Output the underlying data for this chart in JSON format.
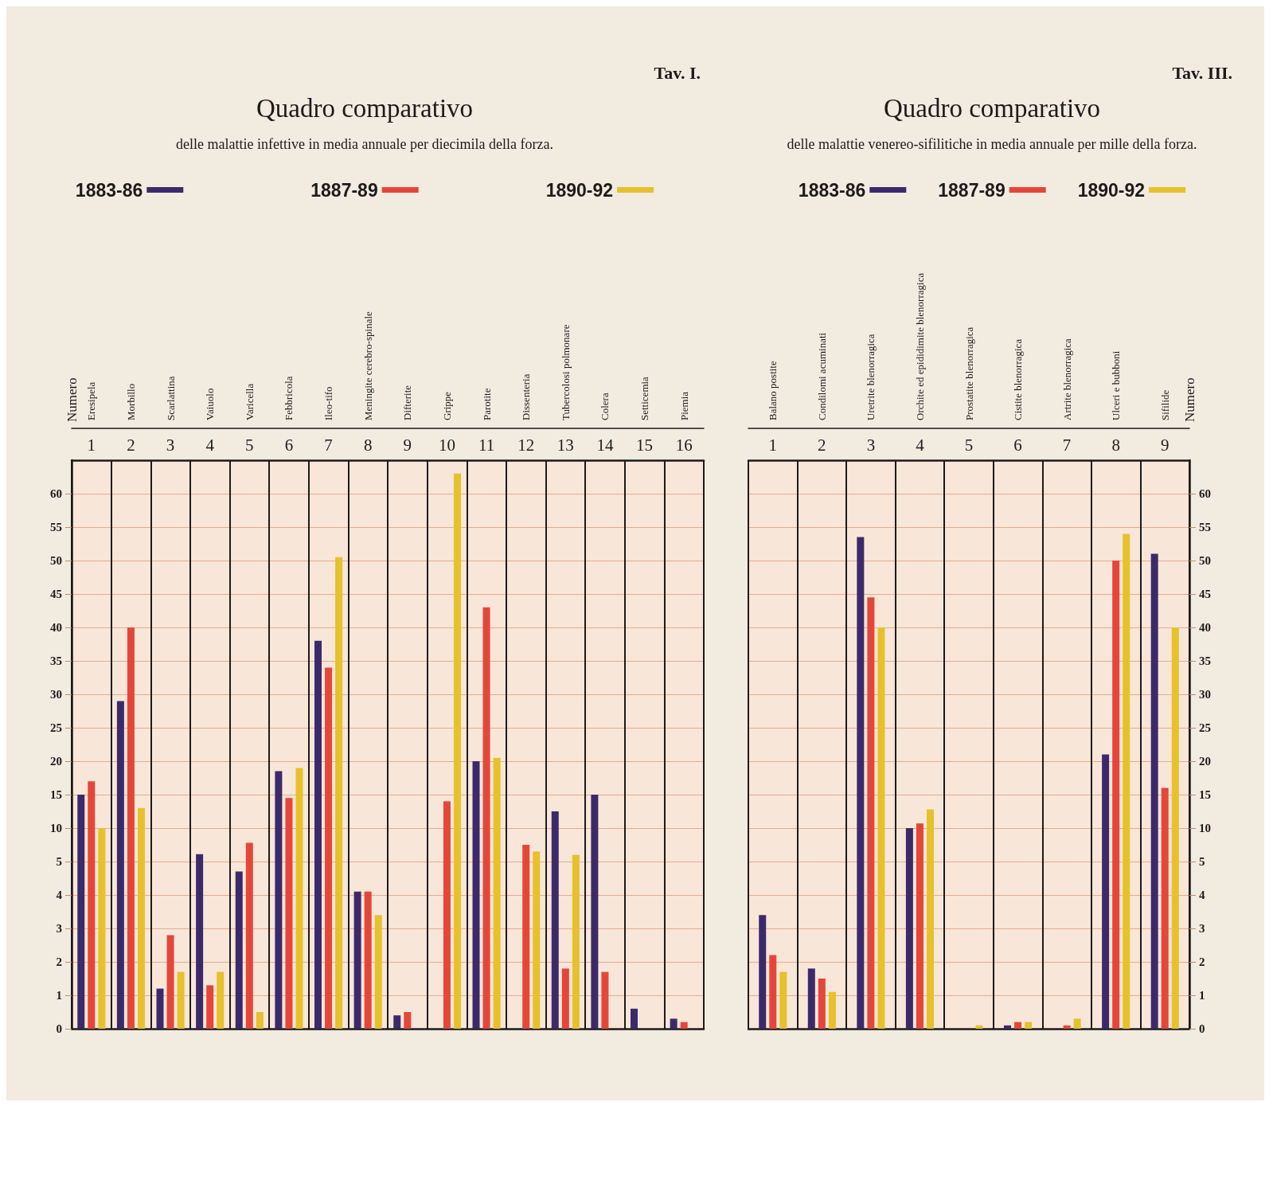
{
  "chart_data": [
    {
      "type": "bar",
      "title": "Quadro comparativo",
      "subtitle": "delle malattie infettive in media annuale per diecimila della forza.",
      "ylabel": "Numero",
      "annotations": [
        "Tav. I."
      ],
      "categories": [
        "Eresipela",
        "Morbillo",
        "Scarlattina",
        "Vaiuolo",
        "Varicella",
        "Febbricola",
        "Ileo-tifo",
        "Meningite cerebro-spinale",
        "Difterite",
        "Grippe",
        "Parotite",
        "Dissenteria",
        "Tubercolosi polmonare",
        "Colera",
        "Setticemia",
        "Piemia"
      ],
      "series": [
        {
          "name": "1883-86",
          "color": "#3b2a6b",
          "values": [
            15,
            29,
            null,
            6.1,
            null,
            18.5,
            38,
            null,
            null,
            null,
            20,
            null,
            12.5,
            15,
            null,
            null
          ]
        },
        {
          "name": "1887-89",
          "color": "#e4473a",
          "values": [
            17,
            40,
            null,
            null,
            7.8,
            14.5,
            34,
            null,
            null,
            14,
            43,
            7.5,
            null,
            null,
            null,
            null
          ]
        },
        {
          "name": "1890-92",
          "color": "#e6c12c",
          "values": [
            10,
            13,
            null,
            null,
            null,
            19,
            50.5,
            null,
            null,
            63,
            20.5,
            6.5,
            6,
            null,
            null,
            null
          ]
        }
      ],
      "ylim": [
        5,
        65
      ],
      "yticks": [
        10,
        15,
        20,
        25,
        30,
        35,
        40,
        45,
        50,
        55,
        60
      ],
      "x2lim": [
        0.5,
        16.5
      ],
      "x2ticks": [
        1,
        2,
        3,
        4,
        5,
        6,
        7,
        8,
        9,
        10,
        11,
        12,
        13,
        14,
        15,
        16
      ],
      "grid": true,
      "legend": "top"
    },
    {
      "type": "bar",
      "tick_labels": "y",
      "categories": [
        null,
        null,
        null,
        null,
        null,
        null,
        null,
        null,
        null,
        null,
        null,
        null,
        null,
        null,
        null,
        null
      ],
      "series": [
        {
          "color": "#3b2a6b",
          "values": [
            5,
            5,
            1.2,
            5,
            4.7,
            5,
            5,
            4.1,
            0.4,
            null,
            5,
            null,
            5,
            5,
            0.6,
            0.3
          ]
        },
        {
          "color": "#e4473a",
          "values": [
            5,
            5,
            2.8,
            1.3,
            5,
            5,
            5,
            4.1,
            0.5,
            5,
            5,
            5,
            1.8,
            1.7,
            null,
            0.2
          ]
        },
        {
          "color": "#e6c12c",
          "values": [
            5,
            5,
            1.7,
            1.7,
            0.5,
            5,
            5,
            3.4,
            null,
            5,
            5,
            5,
            5,
            null,
            null,
            null
          ]
        }
      ],
      "ylim": [
        0,
        5
      ],
      "yticks": [
        0,
        1,
        2,
        3,
        4,
        5
      ],
      "grid": true
    },
    {
      "type": "bar",
      "title": "Quadro comparativo",
      "subtitle": "delle malattie venereo-sifilitiche in media annuale per mille della forza.",
      "y2label": "Numero",
      "annotations": [
        "Tav. III."
      ],
      "categories": [
        "Balano postite",
        "Condilomi acuminati",
        "Uretrite blenorragica",
        "Orchite ed epididimite blenorragica",
        "Prostatite blenorragica",
        "Cistite blenorragica",
        "Artrite blenorragica",
        "Ulceri e bubboni",
        "Sifilide"
      ],
      "series": [
        {
          "name": "1883-86",
          "color": "#3b2a6b",
          "axis": "y2",
          "values": [
            null,
            null,
            53.5,
            10,
            null,
            null,
            null,
            21,
            51
          ]
        },
        {
          "name": "1887-89",
          "color": "#e4473a",
          "axis": "y2",
          "values": [
            null,
            null,
            44.5,
            10.7,
            null,
            null,
            null,
            50,
            16
          ]
        },
        {
          "name": "1890-92",
          "color": "#e6c12c",
          "axis": "y2",
          "values": [
            null,
            null,
            40,
            12.8,
            null,
            null,
            null,
            54,
            40
          ]
        }
      ],
      "y2lim": [
        5,
        65
      ],
      "y2ticks": [
        10,
        15,
        20,
        25,
        30,
        35,
        40,
        45,
        50,
        55,
        60
      ],
      "x2lim": [
        0.5,
        9.5
      ],
      "x2ticks": [
        1,
        2,
        3,
        4,
        5,
        6,
        7,
        8,
        9
      ],
      "grid": true,
      "legend": "top"
    },
    {
      "type": "bar",
      "tick_labels": "y",
      "categories": [
        null,
        null,
        null,
        null,
        null,
        null,
        null,
        null,
        null
      ],
      "series": [
        {
          "color": "#3b2a6b",
          "axis": "y2",
          "values": [
            3.4,
            1.8,
            5,
            5,
            null,
            0.1,
            null,
            5,
            5
          ]
        },
        {
          "color": "#e4473a",
          "axis": "y2",
          "values": [
            2.2,
            1.5,
            5,
            5,
            null,
            0.2,
            0.1,
            5,
            5
          ]
        },
        {
          "color": "#e6c12c",
          "axis": "y2",
          "values": [
            1.7,
            1.1,
            5,
            5,
            0.1,
            0.2,
            0.3,
            5,
            5
          ]
        }
      ],
      "y2lim": [
        0,
        5
      ],
      "y2ticks": [
        0,
        1,
        2,
        3,
        4,
        5
      ],
      "grid": true
    }
  ]
}
